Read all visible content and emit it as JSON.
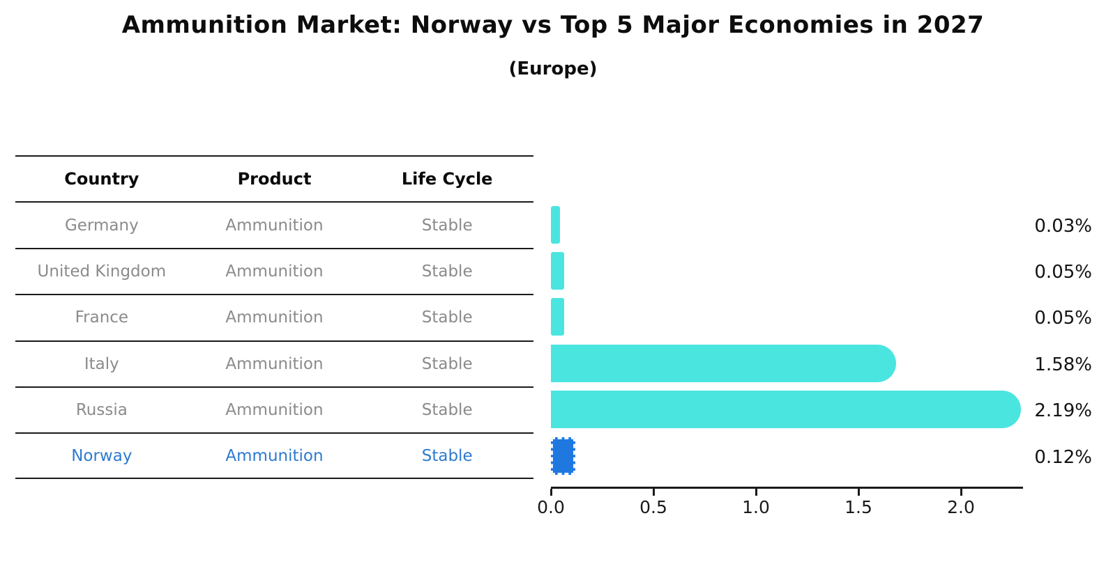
{
  "title": "Ammunition Market: Norway vs Top 5 Major Economies in 2027",
  "subtitle": "(Europe)",
  "table": {
    "headers": [
      "Country",
      "Product",
      "Life Cycle"
    ],
    "rows": [
      {
        "country": "Germany",
        "product": "Ammunition",
        "life_cycle": "Stable",
        "highlight": false
      },
      {
        "country": "United Kingdom",
        "product": "Ammunition",
        "life_cycle": "Stable",
        "highlight": false
      },
      {
        "country": "France",
        "product": "Ammunition",
        "life_cycle": "Stable",
        "highlight": false
      },
      {
        "country": "Italy",
        "product": "Ammunition",
        "life_cycle": "Stable",
        "highlight": false
      },
      {
        "country": "Russia",
        "product": "Ammunition",
        "life_cycle": "Stable",
        "highlight": false
      },
      {
        "country": "Norway",
        "product": "Ammunition",
        "life_cycle": "Stable",
        "highlight": true
      }
    ]
  },
  "chart_data": {
    "type": "bar",
    "orientation": "horizontal",
    "title": "Ammunition Market: Norway vs Top 5 Major Economies in 2027",
    "subtitle": "(Europe)",
    "categories": [
      "Germany",
      "United Kingdom",
      "France",
      "Italy",
      "Russia",
      "Norway"
    ],
    "values": [
      0.03,
      0.05,
      0.05,
      1.58,
      2.19,
      0.12
    ],
    "value_labels": [
      "0.03%",
      "0.05%",
      "0.05%",
      "1.58%",
      "2.19%",
      "0.12%"
    ],
    "x_tick_labels": [
      "0.0",
      "0.5",
      "1.0",
      "1.5",
      "2.0"
    ],
    "xlim": [
      0,
      2.3
    ],
    "grid": false,
    "legend": "none",
    "bar_color": "#4be5e0",
    "highlight_color": "#1e78e0",
    "highlight_text_color": "#2e7bcf",
    "highlight_index": 5,
    "highlight_category": "Norway"
  }
}
